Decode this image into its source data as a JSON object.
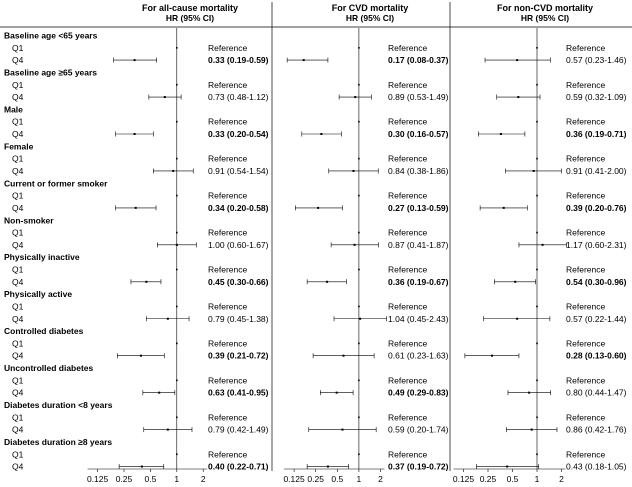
{
  "chart_data": {
    "type": "forest",
    "column_labels": {
      "q1": "Q1",
      "q4": "Q4"
    },
    "ref_label": "Reference",
    "x_ticks": [
      "0.125",
      "0.25",
      "0.5",
      "1",
      "2"
    ],
    "scale": "log2",
    "xlim": [
      0.125,
      2
    ],
    "null_line": 1,
    "panels": [
      {
        "title": "For all-cause mortality",
        "subtitle": "HR  (95%  CI)"
      },
      {
        "title": "For CVD mortality",
        "subtitle": "HR  (95%  CI)"
      },
      {
        "title": "For non-CVD mortality",
        "subtitle": "HR  (95%  CI)"
      }
    ],
    "groups": [
      {
        "label": "Baseline age <65 years",
        "q4": [
          {
            "hr": 0.33,
            "lo": 0.19,
            "hi": 0.59,
            "text": "0.33 (0.19-0.59)",
            "bold": true
          },
          {
            "hr": 0.17,
            "lo": 0.08,
            "hi": 0.37,
            "text": "0.17 (0.08-0.37)",
            "bold": true
          },
          {
            "hr": 0.57,
            "lo": 0.23,
            "hi": 1.46,
            "text": "0.57 (0.23-1.46)",
            "bold": false
          }
        ]
      },
      {
        "label": "Baseline age ≥65 years",
        "q4": [
          {
            "hr": 0.73,
            "lo": 0.48,
            "hi": 1.12,
            "text": "0.73 (0.48-1.12)",
            "bold": false
          },
          {
            "hr": 0.89,
            "lo": 0.53,
            "hi": 1.49,
            "text": "0.89 (0.53-1.49)",
            "bold": false
          },
          {
            "hr": 0.59,
            "lo": 0.32,
            "hi": 1.09,
            "text": "0.59 (0.32-1.09)",
            "bold": false
          }
        ]
      },
      {
        "label": "Male",
        "q4": [
          {
            "hr": 0.33,
            "lo": 0.2,
            "hi": 0.54,
            "text": "0.33 (0.20-0.54)",
            "bold": true
          },
          {
            "hr": 0.3,
            "lo": 0.16,
            "hi": 0.57,
            "text": "0.30 (0.16-0.57)",
            "bold": true
          },
          {
            "hr": 0.36,
            "lo": 0.19,
            "hi": 0.71,
            "text": "0.36 (0.19-0.71)",
            "bold": true
          }
        ]
      },
      {
        "label": "Female",
        "q4": [
          {
            "hr": 0.91,
            "lo": 0.54,
            "hi": 1.54,
            "text": "0.91 (0.54-1.54)",
            "bold": false
          },
          {
            "hr": 0.84,
            "lo": 0.38,
            "hi": 1.86,
            "text": "0.84 (0.38-1.86)",
            "bold": false
          },
          {
            "hr": 0.91,
            "lo": 0.41,
            "hi": 2.0,
            "text": "0.91 (0.41-2.00)",
            "bold": false
          }
        ]
      },
      {
        "label": "Current or former smoker",
        "q4": [
          {
            "hr": 0.34,
            "lo": 0.2,
            "hi": 0.58,
            "text": "0.34 (0.20-0.58)",
            "bold": true
          },
          {
            "hr": 0.27,
            "lo": 0.13,
            "hi": 0.59,
            "text": "0.27 (0.13-0.59)",
            "bold": true
          },
          {
            "hr": 0.39,
            "lo": 0.2,
            "hi": 0.76,
            "text": "0.39 (0.20-0.76)",
            "bold": true
          }
        ]
      },
      {
        "label": "Non-smoker",
        "q4": [
          {
            "hr": 1.0,
            "lo": 0.6,
            "hi": 1.67,
            "text": "1.00 (0.60-1.67)",
            "bold": false
          },
          {
            "hr": 0.87,
            "lo": 0.41,
            "hi": 1.87,
            "text": "0.87 (0.41-1.87)",
            "bold": false
          },
          {
            "hr": 1.17,
            "lo": 0.6,
            "hi": 2.31,
            "text": "1.17 (0.60-2.31)",
            "bold": false
          }
        ]
      },
      {
        "label": "Physically inactive",
        "q4": [
          {
            "hr": 0.45,
            "lo": 0.3,
            "hi": 0.66,
            "text": "0.45 (0.30-0.66)",
            "bold": true
          },
          {
            "hr": 0.36,
            "lo": 0.19,
            "hi": 0.67,
            "text": "0.36 (0.19-0.67)",
            "bold": true
          },
          {
            "hr": 0.54,
            "lo": 0.3,
            "hi": 0.96,
            "text": "0.54 (0.30-0.96)",
            "bold": true
          }
        ]
      },
      {
        "label": "Physically active",
        "q4": [
          {
            "hr": 0.79,
            "lo": 0.45,
            "hi": 1.38,
            "text": "0.79 (0.45-1.38)",
            "bold": false
          },
          {
            "hr": 1.04,
            "lo": 0.45,
            "hi": 2.43,
            "text": "1.04 (0.45-2.43)",
            "bold": false
          },
          {
            "hr": 0.57,
            "lo": 0.22,
            "hi": 1.44,
            "text": "0.57 (0.22-1.44)",
            "bold": false
          }
        ]
      },
      {
        "label": "Controlled diabetes",
        "q4": [
          {
            "hr": 0.39,
            "lo": 0.21,
            "hi": 0.72,
            "text": "0.39 (0.21-0.72)",
            "bold": true
          },
          {
            "hr": 0.61,
            "lo": 0.23,
            "hi": 1.63,
            "text": "0.61 (0.23-1.63)",
            "bold": false
          },
          {
            "hr": 0.28,
            "lo": 0.13,
            "hi": 0.6,
            "text": "0.28 (0.13-0.60)",
            "bold": true
          }
        ]
      },
      {
        "label": "Uncontrolled diabetes",
        "q4": [
          {
            "hr": 0.63,
            "lo": 0.41,
            "hi": 0.95,
            "text": "0.63 (0.41-0.95)",
            "bold": true
          },
          {
            "hr": 0.49,
            "lo": 0.29,
            "hi": 0.83,
            "text": "0.49 (0.29-0.83)",
            "bold": true
          },
          {
            "hr": 0.8,
            "lo": 0.44,
            "hi": 1.47,
            "text": "0.80 (0.44-1.47)",
            "bold": false
          }
        ]
      },
      {
        "label": "Diabetes duration <8 years",
        "q4": [
          {
            "hr": 0.79,
            "lo": 0.42,
            "hi": 1.49,
            "text": "0.79 (0.42-1.49)",
            "bold": false
          },
          {
            "hr": 0.59,
            "lo": 0.2,
            "hi": 1.74,
            "text": "0.59 (0.20-1.74)",
            "bold": false
          },
          {
            "hr": 0.86,
            "lo": 0.42,
            "hi": 1.76,
            "text": "0.86 (0.42-1.76)",
            "bold": false
          }
        ]
      },
      {
        "label": "Diabetes duration ≥8 years",
        "q4": [
          {
            "hr": 0.4,
            "lo": 0.22,
            "hi": 0.71,
            "text": "0.40 (0.22-0.71)",
            "bold": true
          },
          {
            "hr": 0.37,
            "lo": 0.19,
            "hi": 0.72,
            "text": "0.37 (0.19-0.72)",
            "bold": true
          },
          {
            "hr": 0.43,
            "lo": 0.18,
            "hi": 1.05,
            "text": "0.43 (0.18-1.05)",
            "bold": false
          }
        ]
      }
    ]
  }
}
